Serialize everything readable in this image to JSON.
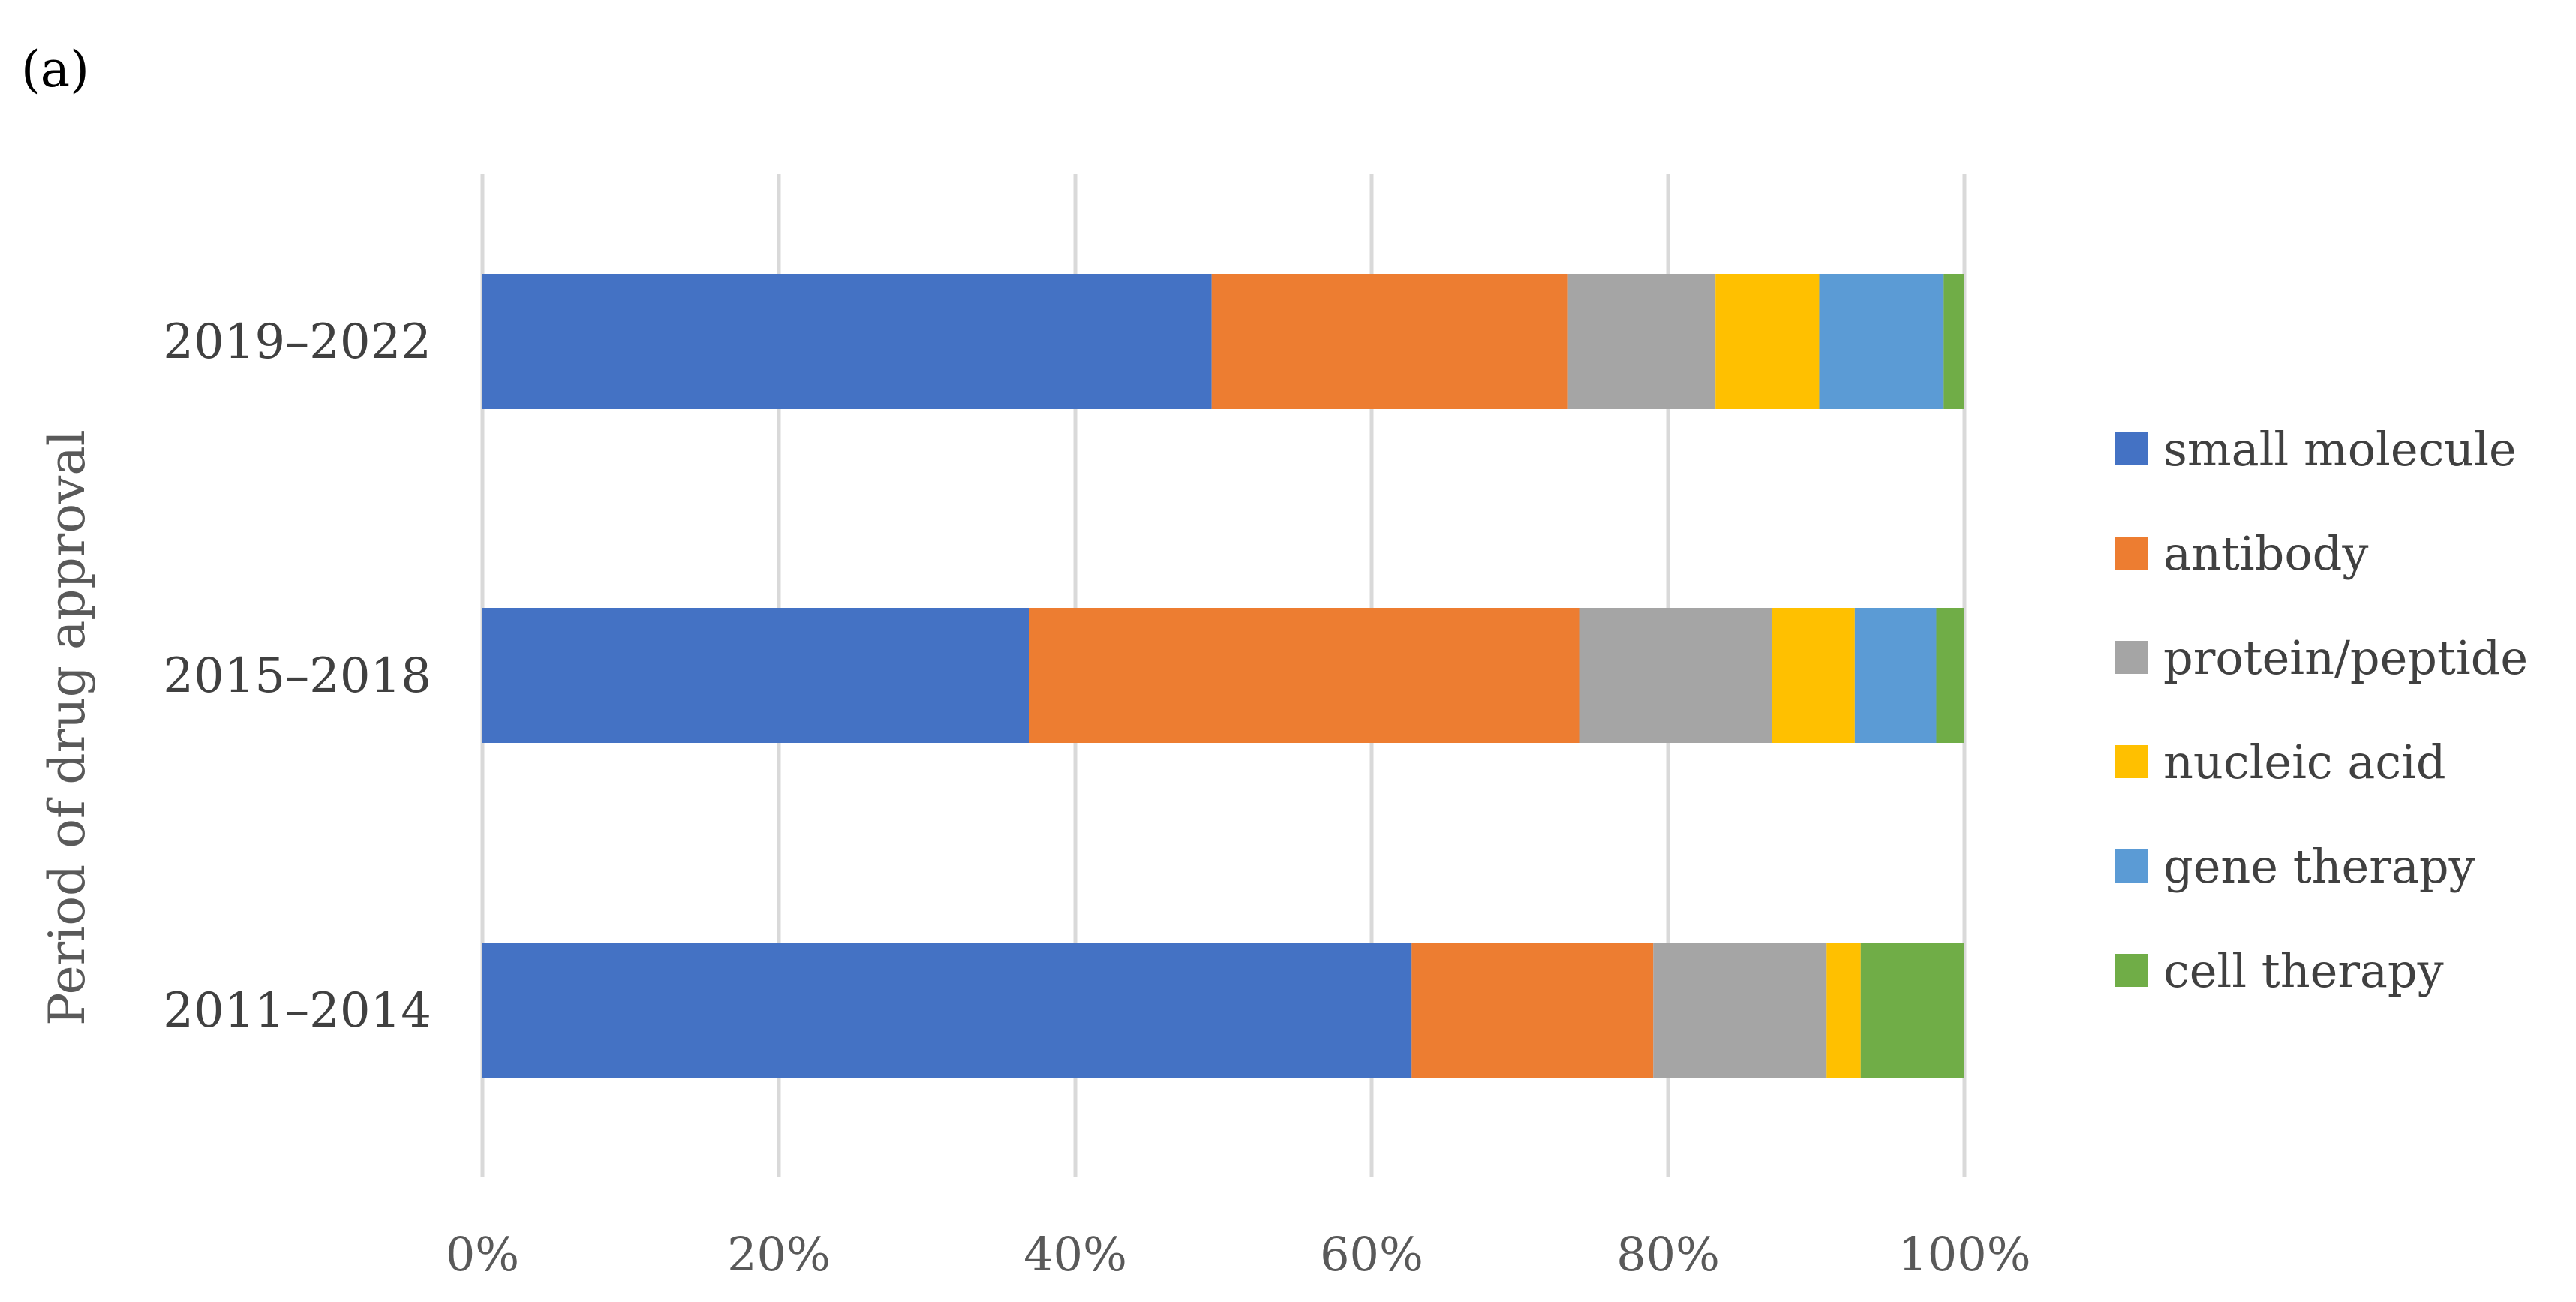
{
  "panel_label": "(a)",
  "chart_data": {
    "type": "bar",
    "orientation": "horizontal",
    "stacked": "percent",
    "xlabel": "",
    "ylabel": "Period of drug approval",
    "xlim": [
      0,
      100
    ],
    "x_ticks": [
      "0%",
      "20%",
      "40%",
      "60%",
      "80%",
      "100%"
    ],
    "grid": "vertical",
    "legend_position": "right",
    "categories": [
      "2019–2022",
      "2015–2018",
      "2011–2014"
    ],
    "series": [
      {
        "name": "small molecule",
        "color": "#4472C4",
        "values": [
          49.2,
          36.9,
          62.7
        ]
      },
      {
        "name": "antibody",
        "color": "#ED7D31",
        "values": [
          24.0,
          37.1,
          16.3
        ]
      },
      {
        "name": "protein/peptide",
        "color": "#A5A5A5",
        "values": [
          10.0,
          13.0,
          11.7
        ]
      },
      {
        "name": "nucleic acid",
        "color": "#FFC000",
        "values": [
          7.0,
          5.6,
          2.3
        ]
      },
      {
        "name": "gene therapy",
        "color": "#5B9BD5",
        "values": [
          8.4,
          5.5,
          0.0
        ]
      },
      {
        "name": "cell therapy",
        "color": "#70AD47",
        "values": [
          1.4,
          1.9,
          7.0
        ]
      }
    ]
  }
}
